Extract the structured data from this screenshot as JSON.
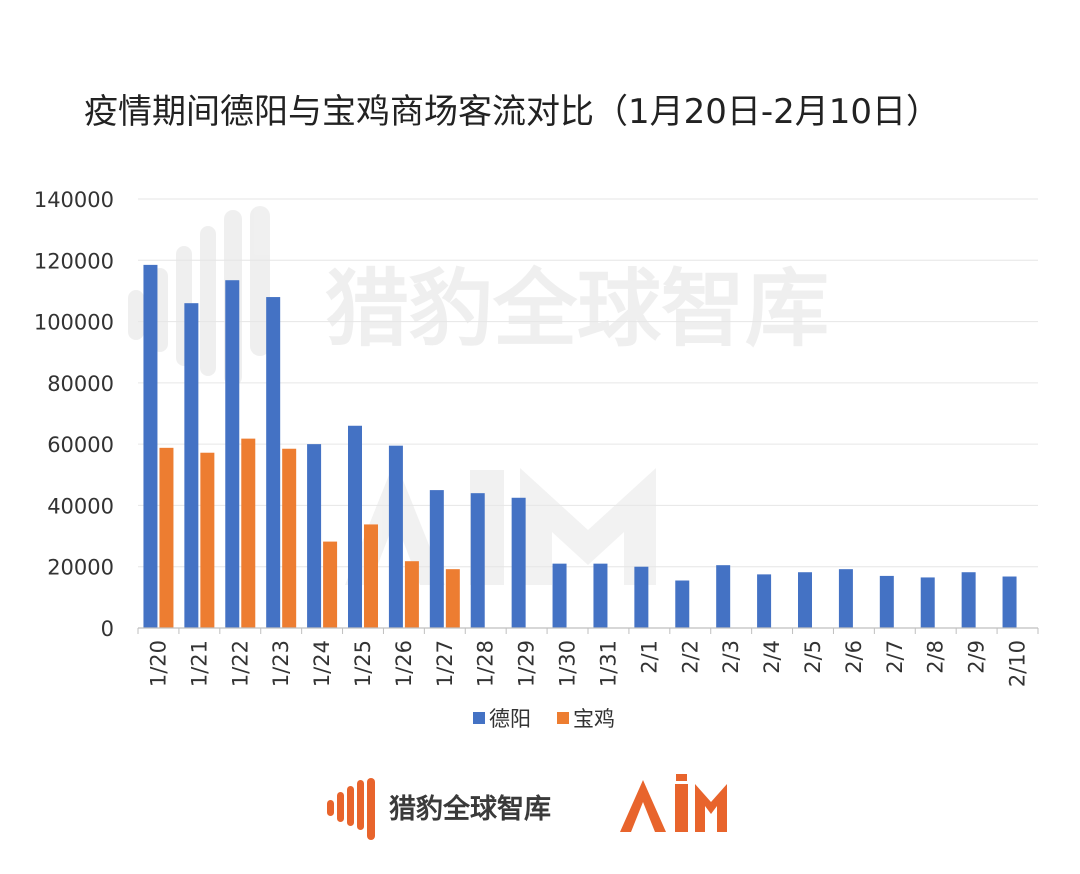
{
  "chart_data": {
    "type": "bar",
    "title": "疫情期间德阳与宝鸡商场客流对比（1月20日-2月10日）",
    "xlabel": "",
    "ylabel": "",
    "ylim": [
      0,
      140000
    ],
    "yticks": [
      0,
      20000,
      40000,
      60000,
      80000,
      100000,
      120000,
      140000
    ],
    "grid": true,
    "legend_position": "bottom",
    "categories": [
      "1/20",
      "1/21",
      "1/22",
      "1/23",
      "1/24",
      "1/25",
      "1/26",
      "1/27",
      "1/28",
      "1/29",
      "1/30",
      "1/31",
      "2/1",
      "2/2",
      "2/3",
      "2/4",
      "2/5",
      "2/6",
      "2/7",
      "2/8",
      "2/9",
      "2/10"
    ],
    "series": [
      {
        "name": "德阳",
        "color": "#4472C4",
        "values": [
          118500,
          106000,
          113500,
          108000,
          60000,
          66000,
          59500,
          45000,
          44000,
          42500,
          21000,
          21000,
          20000,
          15500,
          20500,
          17500,
          18200,
          19200,
          17000,
          16500,
          18200,
          16800
        ]
      },
      {
        "name": "宝鸡",
        "color": "#ED7D31",
        "values": [
          58800,
          57200,
          61800,
          58500,
          28200,
          33800,
          21800,
          19200,
          null,
          null,
          null,
          null,
          null,
          null,
          null,
          null,
          null,
          null,
          null,
          null,
          null,
          null
        ]
      }
    ]
  },
  "branding": {
    "logo_name": "猎豹全球智库",
    "aim_logo": "AIM",
    "brand_color": "#E8642C",
    "watermark_text": "猎豹全球智库"
  }
}
